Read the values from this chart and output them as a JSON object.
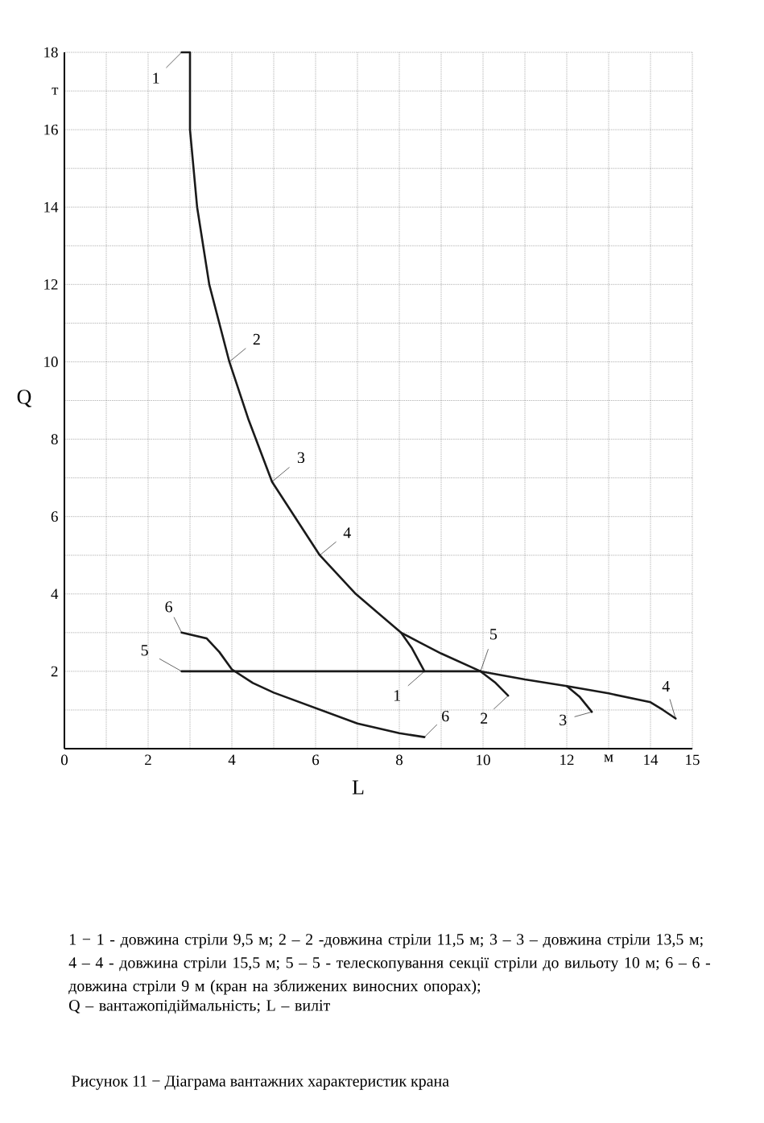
{
  "chart_data": {
    "type": "line",
    "title": "Рисунок 11 − Діаграма вантажних характеристик крана",
    "xlabel": "L",
    "ylabel": "Q",
    "xlim": [
      0,
      15
    ],
    "ylim": [
      0,
      18
    ],
    "xticks": [
      0,
      {
        "value": 1,
        "label": null
      },
      2,
      {
        "value": 3,
        "label": null
      },
      4,
      {
        "value": 5,
        "label": null
      },
      6,
      {
        "value": 7,
        "label": null
      },
      8,
      {
        "value": 9,
        "label": null
      },
      10,
      {
        "value": 11,
        "label": null
      },
      12,
      {
        "value": 13,
        "label": "м"
      },
      14,
      15
    ],
    "yticks": [
      {
        "value": 0,
        "label": null
      },
      {
        "value": 1,
        "label": null
      },
      2,
      {
        "value": 3,
        "label": null
      },
      4,
      {
        "value": 5,
        "label": null
      },
      6,
      {
        "value": 7,
        "label": null
      },
      8,
      {
        "value": 9,
        "label": null
      },
      10,
      {
        "value": 11,
        "label": null
      },
      12,
      {
        "value": 13,
        "label": null
      },
      14,
      {
        "value": 15,
        "label": null
      },
      16,
      {
        "value": 17,
        "label": "т"
      },
      18
    ],
    "grid": true,
    "marker": "none",
    "line_style": "solid",
    "series": [
      {
        "color": "#1a1a1a",
        "x": [
          8.04,
          8.3,
          8.6
        ],
        "values": [
          3.0,
          2.6,
          2.0
        ]
      },
      {
        "color": "#1a1a1a",
        "x": [
          9.94,
          10.3,
          10.6
        ],
        "values": [
          2.0,
          1.7,
          1.37
        ]
      },
      {
        "color": "#1a1a1a",
        "x": [
          12.0,
          12.3,
          12.6
        ],
        "values": [
          1.62,
          1.35,
          0.95
        ]
      },
      {
        "color": "#1a1a1a",
        "x": [
          2.8,
          3.0,
          3.0,
          3.17,
          3.46,
          3.94,
          4.4,
          4.96,
          5.5,
          6.1,
          6.96,
          8.04,
          8.5,
          9.0,
          9.94,
          11.0,
          12.0,
          13.0,
          14.0,
          14.3,
          14.6
        ],
        "values": [
          18,
          18,
          16,
          14,
          12,
          10,
          8.5,
          6.9,
          6.0,
          5.0,
          4.0,
          3.0,
          2.74,
          2.46,
          2.0,
          1.79,
          1.62,
          1.43,
          1.2,
          1.0,
          0.78
        ]
      },
      {
        "color": "#1a1a1a",
        "x": [
          2.8,
          9.94
        ],
        "values": [
          2.0,
          2.0
        ]
      },
      {
        "color": "#1a1a1a",
        "x": [
          2.8,
          3.4,
          3.7,
          4.0,
          4.5,
          5.0,
          6.0,
          7.0,
          8.0,
          8.6
        ],
        "values": [
          3.0,
          2.85,
          2.5,
          2.05,
          1.7,
          1.45,
          1.05,
          0.65,
          0.4,
          0.3
        ]
      }
    ],
    "annotations": [
      {
        "text": "1",
        "x": 2.8,
        "y": 18
      },
      {
        "text": "2",
        "x": 3.94,
        "y": 10
      },
      {
        "text": "3",
        "x": 4.96,
        "y": 6.9
      },
      {
        "text": "4",
        "x": 6.1,
        "y": 5.0
      },
      {
        "text": "6",
        "x": 2.8,
        "y": 3.0
      },
      {
        "text": "5",
        "x": 2.8,
        "y": 2.0
      },
      {
        "text": "5",
        "x": 9.94,
        "y": 2.0
      },
      {
        "text": "1",
        "x": 8.6,
        "y": 2.0
      },
      {
        "text": "6",
        "x": 8.6,
        "y": 0.3
      },
      {
        "text": "2",
        "x": 10.6,
        "y": 1.37
      },
      {
        "text": "3",
        "x": 12.6,
        "y": 0.95
      },
      {
        "text": "4",
        "x": 14.6,
        "y": 0.78
      },
      "1 − 1 - довжина стріли 9,5 м;  2 – 2 -довжина стріли 11,5 м; 3 – 3 – довжина стріли 13,5 м; 4 – 4 - довжина стріли 15,5 м; 5 – 5 - телескопування секції стріли до вильоту 10 м; 6 – 6 - довжина стріли 9 м (кран на зближених виносних опорах);",
      "Q – вантажопідіймальність; L – виліт"
    ]
  }
}
